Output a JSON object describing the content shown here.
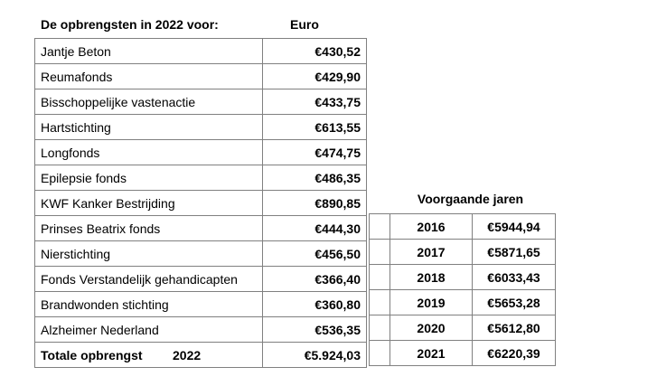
{
  "main_table": {
    "title": "De opbrengsten in 2022 voor:",
    "amount_column_header": "Euro",
    "rows": [
      {
        "name": "Jantje Beton",
        "amount": "€430,52"
      },
      {
        "name": "Reumafonds",
        "amount": "€429,90"
      },
      {
        "name": "Bisschoppelijke vastenactie",
        "amount": "€433,75"
      },
      {
        "name": "Hartstichting",
        "amount": "€613,55"
      },
      {
        "name": "Longfonds",
        "amount": "€474,75"
      },
      {
        "name": "Epilepsie fonds",
        "amount": "€486,35"
      },
      {
        "name": "KWF Kanker Bestrijding",
        "amount": "€890,85"
      },
      {
        "name": "Prinses Beatrix fonds",
        "amount": "€444,30"
      },
      {
        "name": "Nierstichting",
        "amount": "€456,50"
      },
      {
        "name": "Fonds Verstandelijk gehandicapten",
        "amount": "€366,40"
      },
      {
        "name": "Brandwonden stichting",
        "amount": "€360,80"
      },
      {
        "name": "Alzheimer Nederland",
        "amount": "€536,35"
      }
    ],
    "total": {
      "label": "Totale opbrengst",
      "year": "2022",
      "amount": "€5.924,03"
    }
  },
  "previous_years": {
    "title": "Voorgaande jaren",
    "rows": [
      {
        "year": "2016",
        "amount": "€5944,94"
      },
      {
        "year": "2017",
        "amount": "€5871,65"
      },
      {
        "year": "2018",
        "amount": "€6033,43"
      },
      {
        "year": "2019",
        "amount": "€5653,28"
      },
      {
        "year": "2020",
        "amount": "€5612,80"
      },
      {
        "year": "2021",
        "amount": "€6220,39"
      }
    ]
  },
  "colors": {
    "border": "#808080",
    "text": "#000000",
    "background": "#ffffff"
  }
}
